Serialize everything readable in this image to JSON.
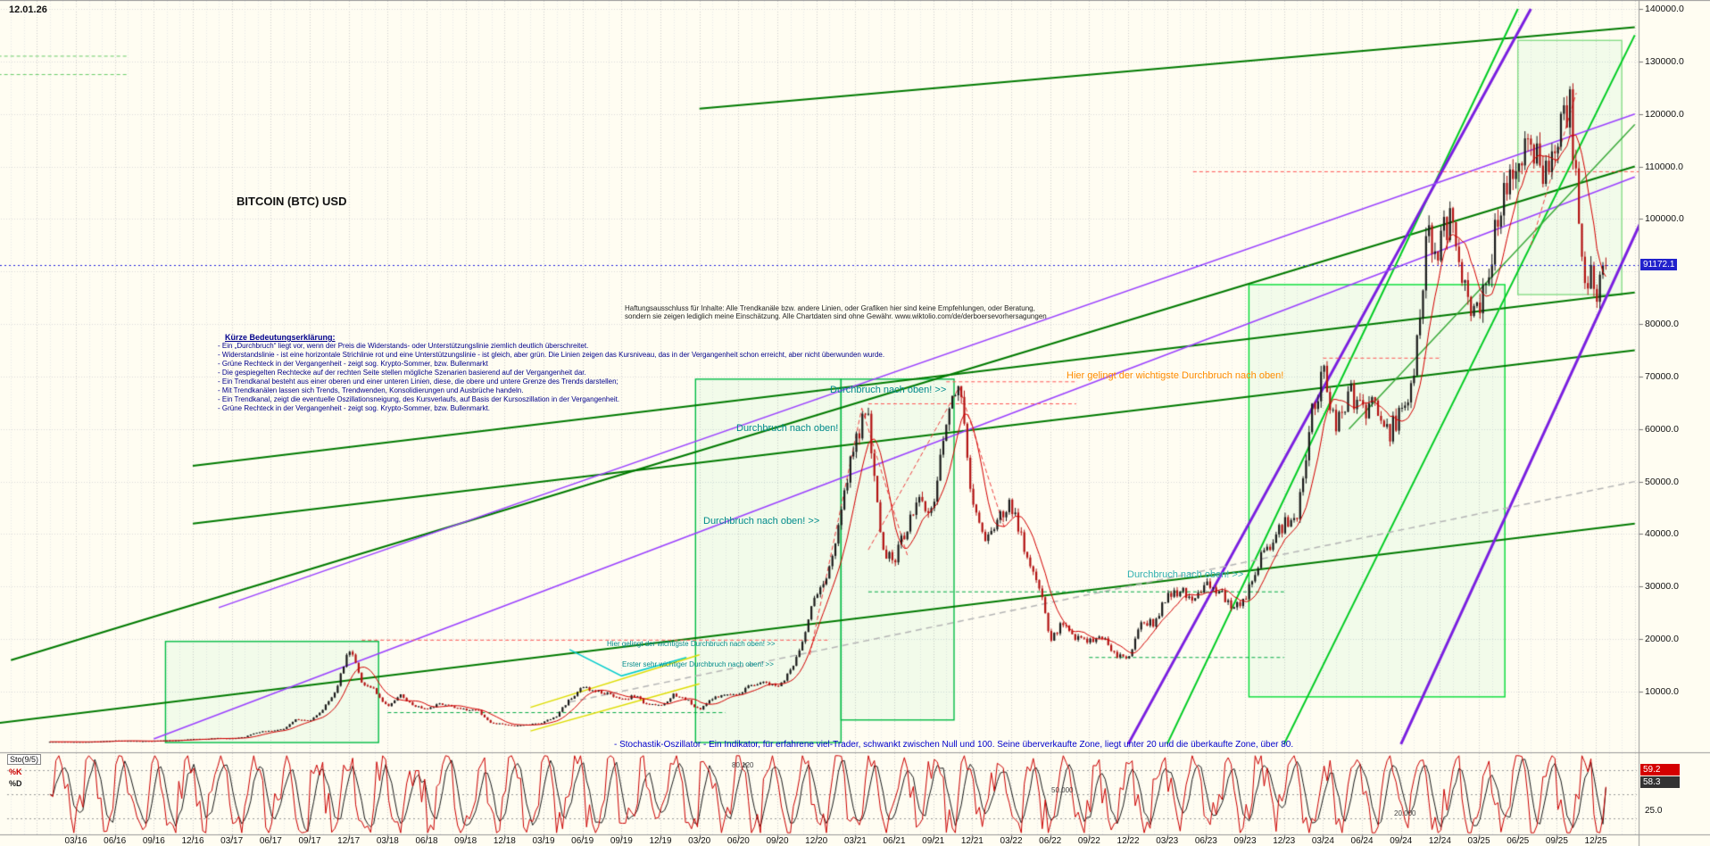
{
  "header": {
    "date": "12.01.26",
    "title": "BITCOIN (BTC) USD"
  },
  "disclaimer": {
    "line1": "Haftungsausschluss für Inhalte: Alle Trendkanäle bzw. andere Linien, oder Grafiken hier sind keine Empfehlungen, oder Beratung,",
    "line2": "sondern sie zeigen lediglich meine Einschätzung. Alle Chartdaten sind ohne Gewähr. www.wiktolio.com/de/derboersevorhersagungen"
  },
  "legend": {
    "title": "Kürze Bedeutungserklärung:",
    "lines": [
      "- Ein „Durchbruch“ liegt vor, wenn der Preis die Widerstands- oder Unterstützungslinie ziemlich deutlich überschreitet.",
      "- Widerstandslinie - ist eine horizontale Strichlinie rot und eine Unterstützungslinie - ist gleich, aber grün. Die Linien zeigen das Kursniveau, das in der Vergangenheit schon erreicht, aber nicht überwunden wurde.",
      "- Grüne Rechteck in der Vergangenheit - zeigt sog. Krypto-Sommer, bzw. Bullenmarkt",
      "- Die gespiegelten Rechtecke auf der rechten Seite stellen mögliche Szenarien basierend auf der Vergangenheit dar.",
      "- Ein Trendkanal besteht aus einer oberen und einer unteren Linien, diese, die obere und untere Grenze des Trends darstellen;",
      "- Mit Trendkanälen lassen sich Trends, Trendwenden, Konsolidierungen und Ausbrüche handeln.",
      "- Ein Trendkanal, zeigt die eventuelle Oszillationsneigung, des Kursverlaufs, auf Basis der Kursoszillation in der Vergangenheit.",
      "- Grüne Rechteck in der Vergangenheit - zeigt sog. Krypto-Sommer, bzw. Bullenmarkt."
    ]
  },
  "annotations": {
    "a1": "Durchbruch nach oben!",
    "a2": "Durchbruch nach oben! >>",
    "a3": "Durchbruch nach oben! >>",
    "a4": "Durchbruch nach oben! >>",
    "a5": "Hier gelingt der wichtigste Durchbruch nach oben!",
    "a6": "Hier gelingt der wichtigste Durchbruch nach oben! >>",
    "a7": "Erster sehr wichtiger Durchbruch nach oben! >>"
  },
  "axis": {
    "price_labels": [
      {
        "label": "140000.0",
        "value": 140000
      },
      {
        "label": "130000.0",
        "value": 130000
      },
      {
        "label": "120000.0",
        "value": 120000
      },
      {
        "label": "110000.0",
        "value": 110000
      },
      {
        "label": "100000.0",
        "value": 100000
      },
      {
        "label": "80000.0",
        "value": 80000
      },
      {
        "label": "70000.0",
        "value": 70000
      },
      {
        "label": "60000.0",
        "value": 60000
      },
      {
        "label": "50000.0",
        "value": 50000
      },
      {
        "label": "40000.0",
        "value": 40000
      },
      {
        "label": "30000.0",
        "value": 30000
      },
      {
        "label": "20000.0",
        "value": 20000
      },
      {
        "label": "10000.0",
        "value": 10000
      }
    ],
    "time_labels": [
      "03/16",
      "06/16",
      "09/16",
      "12/16",
      "03/17",
      "06/17",
      "09/17",
      "12/17",
      "03/18",
      "06/18",
      "09/18",
      "12/18",
      "03/19",
      "06/19",
      "09/19",
      "12/19",
      "03/20",
      "06/20",
      "09/20",
      "12/20",
      "03/21",
      "06/21",
      "09/21",
      "12/21",
      "03/22",
      "06/22",
      "09/22",
      "12/22",
      "03/23",
      "06/23",
      "09/23",
      "12/23",
      "03/24",
      "06/24",
      "09/24",
      "12/24",
      "03/25",
      "06/25",
      "09/25",
      "12/25"
    ]
  },
  "chart_data": {
    "type": "candlestick",
    "title": "BITCOIN (BTC) USD",
    "ylabel": "USD",
    "ylim": [
      0,
      142000
    ],
    "x_range_note": "monthly closes Jan 2016 - Jan 2026",
    "current_price": 91172.1,
    "current_price_label": "91172.1",
    "monthly_close": [
      434,
      437,
      416,
      448,
      531,
      673,
      624,
      575,
      610,
      700,
      745,
      963,
      970,
      1180,
      1080,
      1350,
      2300,
      2480,
      2875,
      4735,
      4360,
      6450,
      10100,
      18500,
      12000,
      10300,
      6940,
      9240,
      7500,
      6400,
      7750,
      7020,
      6625,
      6300,
      4017,
      3742,
      3457,
      3854,
      4105,
      5320,
      8574,
      10817,
      10085,
      9630,
      8293,
      9199,
      7569,
      7193,
      9350,
      8599,
      6438,
      8658,
      9461,
      9137,
      11351,
      11655,
      10776,
      13797,
      19698,
      28990,
      33114,
      45240,
      58800,
      63500,
      37300,
      35040,
      41490,
      47130,
      43790,
      61320,
      67500,
      46210,
      38480,
      43190,
      45540,
      37640,
      31790,
      19925,
      23300,
      20050,
      19430,
      20490,
      17165,
      16540,
      23130,
      23140,
      28480,
      29230,
      27220,
      30480,
      29230,
      25930,
      26960,
      34660,
      37720,
      42270,
      42580,
      61200,
      71330,
      60640,
      67530,
      62680,
      64620,
      58970,
      63330,
      70220,
      96400,
      95000,
      102000,
      84400,
      82500,
      94200,
      104600,
      107600,
      116000,
      108000,
      114000,
      121500,
      91500,
      86500,
      91172
    ],
    "stochastic": {
      "name": "Sto(9/5)",
      "k_label": "%K",
      "d_label": "%D",
      "k_value": 59.2,
      "d_value": 58.3,
      "k_value_label": "59.2",
      "d_value_label": "58.3",
      "axis_label": "25.0",
      "levels": [
        80,
        50,
        20
      ],
      "level_labels": [
        "80.120",
        "50.000",
        "20.000"
      ],
      "note": "- Stochastik-Oszillator - Ein Indikator, für erfahrene viel-Trader, schwankt zwischen Null und 100. Seine überverkaufte Zone, liegt unter 20 und die überkaufte Zone, über 80."
    },
    "overlays": {
      "trend_lines": [
        {
          "from": [
            -3,
            16000
          ],
          "to": [
            122,
            110000
          ],
          "color": "#007a00",
          "width": 2
        },
        {
          "from": [
            11,
            53000
          ],
          "to": [
            122,
            86000
          ],
          "color": "#007a00",
          "width": 2
        },
        {
          "from": [
            11,
            42000
          ],
          "to": [
            122,
            75000
          ],
          "color": "#007a00",
          "width": 2
        },
        {
          "from": [
            50,
            121000
          ],
          "to": [
            122,
            136500
          ],
          "color": "#007a00",
          "width": 2
        },
        {
          "from": [
            -4,
            4000
          ],
          "to": [
            122,
            42000
          ],
          "color": "#007a00",
          "width": 2
        },
        {
          "from": [
            86,
            0
          ],
          "to": [
            113,
            140000
          ],
          "color": "#00cc22",
          "width": 2
        },
        {
          "from": [
            95,
            0
          ],
          "to": [
            122,
            135000
          ],
          "color": "#00cc22",
          "width": 2
        },
        {
          "from": [
            83,
            0
          ],
          "to": [
            114,
            140000
          ],
          "color": "#7a1fe0",
          "width": 3
        },
        {
          "from": [
            104,
            0
          ],
          "to": [
            130,
            140000
          ],
          "color": "#7a1fe0",
          "width": 3
        },
        {
          "from": [
            8,
            1000
          ],
          "to": [
            122,
            108000
          ],
          "color": "#9a40ff",
          "width": 1.5
        },
        {
          "from": [
            13,
            26000
          ],
          "to": [
            122,
            120000
          ],
          "color": "#9a40ff",
          "width": 1.5
        },
        {
          "from": [
            40,
            8000
          ],
          "to": [
            122,
            50000
          ],
          "color": "#b5b5b5",
          "width": 1.5,
          "dash": [
            7,
            5
          ]
        },
        {
          "from": [
            100,
            60000
          ],
          "to": [
            122,
            118000
          ],
          "color": "#3aaa3a",
          "width": 1.5
        }
      ],
      "h_lines": [
        {
          "price": 19800,
          "m1": 24,
          "m2": 60,
          "color": "#ff5555",
          "dash": [
            4,
            3
          ]
        },
        {
          "price": 64800,
          "m1": 63,
          "m2": 79,
          "color": "#ff5555",
          "dash": [
            4,
            3
          ]
        },
        {
          "price": 69000,
          "m1": 69,
          "m2": 79,
          "color": "#ff5555",
          "dash": [
            4,
            3
          ]
        },
        {
          "price": 73500,
          "m1": 98,
          "m2": 107,
          "color": "#ff5555",
          "dash": [
            4,
            3
          ]
        },
        {
          "price": 109000,
          "m1": 88,
          "m2": 123,
          "color": "#ff5555",
          "dash": [
            4,
            3
          ]
        },
        {
          "price": 6000,
          "m1": 26,
          "m2": 52,
          "color": "#00aa44",
          "dash": [
            4,
            3
          ]
        },
        {
          "price": 29000,
          "m1": 63,
          "m2": 95,
          "color": "#00aa44",
          "dash": [
            4,
            3
          ]
        },
        {
          "price": 16500,
          "m1": 80,
          "m2": 95,
          "color": "#00aa44",
          "dash": [
            4,
            3
          ]
        },
        {
          "price": 131000,
          "m1": -4,
          "m2": 6,
          "color": "#66cc66",
          "dash": [
            4,
            3
          ]
        },
        {
          "price": 127500,
          "m1": -4,
          "m2": 6,
          "color": "#66cc66",
          "dash": [
            4,
            3
          ]
        }
      ],
      "polylines": [
        {
          "points": [
            [
              58.5,
              17000
            ],
            [
              62.5,
              64000
            ]
          ],
          "color": "#ee4444",
          "width": 1,
          "dash": [
            5,
            3
          ]
        },
        {
          "points": [
            [
              62.5,
              64000
            ],
            [
              66,
              36000
            ]
          ],
          "color": "#ee4444",
          "width": 1,
          "dash": [
            5,
            3
          ]
        },
        {
          "points": [
            [
              63,
              37000
            ],
            [
              70,
              68000
            ]
          ],
          "color": "#ee4444",
          "width": 1,
          "dash": [
            5,
            3
          ]
        },
        {
          "points": [
            [
              70,
              68000
            ],
            [
              73.5,
              41000
            ]
          ],
          "color": "#ee4444",
          "width": 1,
          "dash": [
            5,
            3
          ]
        },
        {
          "points": [
            [
              114,
              95000
            ],
            [
              117.5,
              124000
            ]
          ],
          "color": "#ee4444",
          "width": 1,
          "dash": [
            5,
            3
          ]
        },
        {
          "points": [
            [
              40,
              18000
            ],
            [
              44,
              13000
            ],
            [
              49,
              16500
            ]
          ],
          "color": "#00cccc",
          "width": 1.5
        },
        {
          "points": [
            [
              37,
              7000
            ],
            [
              50,
              17000
            ]
          ],
          "color": "#dddd00",
          "width": 1.5
        },
        {
          "points": [
            [
              37,
              2500
            ],
            [
              50,
              11500
            ]
          ],
          "color": "#dddd00",
          "width": 1.5
        }
      ],
      "rects": [
        {
          "m1": 8.9,
          "m2": 25.3,
          "p1": 300,
          "p2": 19550,
          "color": "#00bb44"
        },
        {
          "m1": 49.7,
          "m2": 60.9,
          "p1": 300,
          "p2": 69500,
          "color": "#00bb44"
        },
        {
          "m1": 60.9,
          "m2": 69.6,
          "p1": 4600,
          "p2": 69500,
          "color": "#00bb44"
        },
        {
          "m1": 92.3,
          "m2": 112,
          "p1": 9000,
          "p2": 87500,
          "color": "#00dd33"
        },
        {
          "m1": 113,
          "m2": 121,
          "p1": 85600,
          "p2": 134000,
          "color": "#88dd88"
        }
      ]
    }
  }
}
